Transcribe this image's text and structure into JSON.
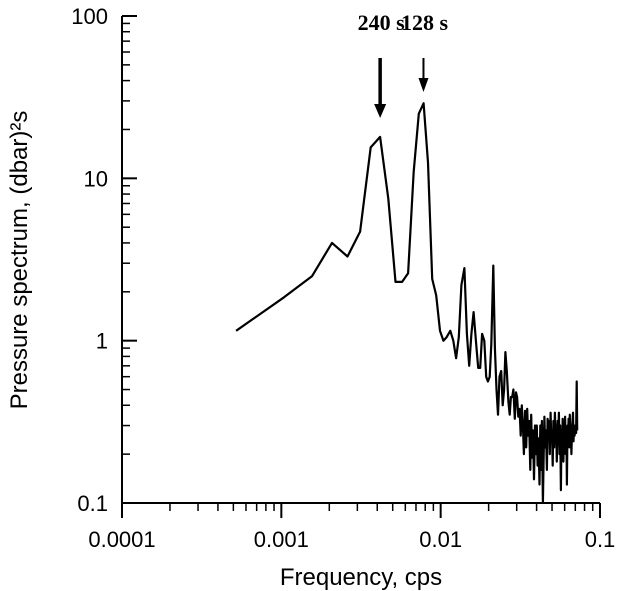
{
  "chart_data": {
    "type": "line",
    "x_scale": "log",
    "y_scale": "log",
    "xlim": [
      0.0001,
      0.1
    ],
    "ylim": [
      0.1,
      100
    ],
    "xlabel": "Frequency, cps",
    "ylabel": "Pressure spectrum, (dbar)²s",
    "x_ticks": [
      {
        "value": 0.0001,
        "label": "0.0001"
      },
      {
        "value": 0.001,
        "label": "0.001"
      },
      {
        "value": 0.01,
        "label": "0.01"
      },
      {
        "value": 0.1,
        "label": "0.1"
      }
    ],
    "y_ticks": [
      {
        "value": 0.1,
        "label": "0.1"
      },
      {
        "value": 1,
        "label": "1"
      },
      {
        "value": 10,
        "label": "10"
      },
      {
        "value": 100,
        "label": "100"
      }
    ],
    "grid": false,
    "series": [
      {
        "x": [
          0.00052,
          0.00104,
          0.00156,
          0.00208,
          0.0026,
          0.00312,
          0.00364,
          0.00417,
          0.00469,
          0.00521,
          0.00573,
          0.00625,
          0.00677,
          0.00729,
          0.00781,
          0.00833,
          0.00885,
          0.00938,
          0.0099,
          0.0104,
          0.0109,
          0.0115,
          0.012,
          0.0125,
          0.013,
          0.0135,
          0.0141,
          0.0146,
          0.0151,
          0.0156,
          0.0161,
          0.0167,
          0.0172,
          0.0177,
          0.0182,
          0.0188,
          0.0193,
          0.0198,
          0.0203,
          0.0208,
          0.0214,
          0.0219,
          0.0224,
          0.0229,
          0.0234,
          0.024,
          0.0245,
          0.025,
          0.0255,
          0.026,
          0.0266,
          0.0271,
          0.0276,
          0.0281,
          0.0286,
          0.0292,
          0.0297,
          0.0302,
          0.0307,
          0.0313,
          0.0318,
          0.0323,
          0.0328,
          0.0333,
          0.0339,
          0.0344,
          0.0349,
          0.0354,
          0.0359,
          0.0365,
          0.037,
          0.0375,
          0.038,
          0.0385,
          0.0391,
          0.0396,
          0.0401,
          0.0406,
          0.0411,
          0.0417,
          0.0422,
          0.0427,
          0.0432,
          0.0438,
          0.0443,
          0.0448,
          0.0453,
          0.0458,
          0.0464,
          0.0469,
          0.0474,
          0.0479,
          0.0484,
          0.049,
          0.0495,
          0.05,
          0.0505,
          0.051,
          0.0516,
          0.0521,
          0.0526,
          0.0531,
          0.0536,
          0.0542,
          0.0547,
          0.0552,
          0.0557,
          0.0563,
          0.0568,
          0.0573,
          0.0578,
          0.0583,
          0.0589,
          0.0594,
          0.0599,
          0.0604,
          0.0609,
          0.0615,
          0.062,
          0.0625,
          0.063,
          0.0635,
          0.0641,
          0.0646,
          0.0651,
          0.0656,
          0.0661,
          0.0667,
          0.0672,
          0.0677,
          0.0682,
          0.0688,
          0.0693,
          0.0698,
          0.0703,
          0.0708,
          0.0714,
          0.0719
        ],
        "y": [
          1.15,
          1.85,
          2.5,
          4.0,
          3.3,
          4.7,
          15.5,
          18.0,
          7.5,
          2.3,
          2.3,
          2.6,
          11.0,
          25.0,
          29.0,
          12.5,
          2.4,
          1.9,
          1.15,
          1.0,
          1.05,
          1.15,
          1.0,
          0.78,
          1.05,
          2.2,
          2.8,
          1.1,
          0.7,
          1.1,
          1.5,
          0.95,
          0.68,
          0.68,
          1.1,
          1.0,
          0.6,
          0.56,
          0.6,
          0.95,
          2.9,
          0.9,
          0.5,
          0.35,
          0.6,
          0.65,
          0.4,
          0.5,
          0.85,
          0.65,
          0.42,
          0.35,
          0.45,
          0.45,
          0.5,
          0.33,
          0.48,
          0.45,
          0.34,
          0.38,
          0.26,
          0.4,
          0.3,
          0.2,
          0.37,
          0.22,
          0.38,
          0.26,
          0.32,
          0.16,
          0.35,
          0.19,
          0.28,
          0.14,
          0.3,
          0.2,
          0.3,
          0.17,
          0.25,
          0.13,
          0.3,
          0.16,
          0.32,
          0.1,
          0.2,
          0.34,
          0.22,
          0.28,
          0.16,
          0.33,
          0.25,
          0.32,
          0.2,
          0.36,
          0.24,
          0.28,
          0.17,
          0.32,
          0.22,
          0.36,
          0.26,
          0.3,
          0.18,
          0.32,
          0.24,
          0.36,
          0.2,
          0.3,
          0.12,
          0.28,
          0.22,
          0.33,
          0.18,
          0.3,
          0.24,
          0.34,
          0.2,
          0.28,
          0.13,
          0.3,
          0.24,
          0.33,
          0.22,
          0.35,
          0.26,
          0.3,
          0.2,
          0.28,
          0.32,
          0.36,
          0.24,
          0.3,
          0.26,
          0.28,
          0.3,
          0.27,
          0.56,
          0.28
        ]
      }
    ],
    "annotations": [
      {
        "text": "240 s",
        "x": 0.00417
      },
      {
        "text": "128 s",
        "x": 0.0078
      }
    ]
  }
}
